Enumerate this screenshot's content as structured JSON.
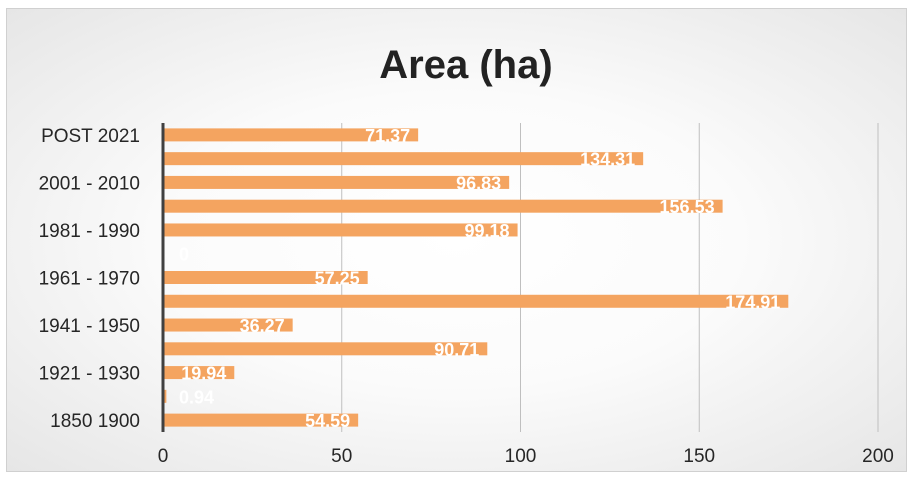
{
  "chart_data": {
    "type": "bar",
    "orientation": "horizontal",
    "title": "Area (ha)",
    "xlabel": "",
    "ylabel": "",
    "categories": [
      "1850 1900",
      "",
      "1921 - 1930",
      "",
      "1941 - 1950",
      "",
      "1961 - 1970",
      "",
      "1981 - 1990",
      "",
      "2001 - 2010",
      "",
      "POST 2021"
    ],
    "values": [
      54.59,
      0.94,
      19.94,
      90.71,
      36.27,
      174.91,
      57.25,
      0,
      99.18,
      156.53,
      96.83,
      134.31,
      71.37
    ],
    "data_labels": [
      "54.59",
      "0.94",
      "19.94",
      "90.71",
      "36.27",
      "174.91",
      "57.25",
      "0",
      "99.18",
      "156.53",
      "96.83",
      "134.31",
      "71.37"
    ],
    "xlim": [
      0,
      200
    ],
    "xticks": [
      "0",
      "50",
      "100",
      "150",
      "200"
    ],
    "grid": true,
    "legend": "none",
    "bar_color": "#F4A460",
    "gridline_color": "#bfbfbf",
    "axis_color": "#404040"
  }
}
